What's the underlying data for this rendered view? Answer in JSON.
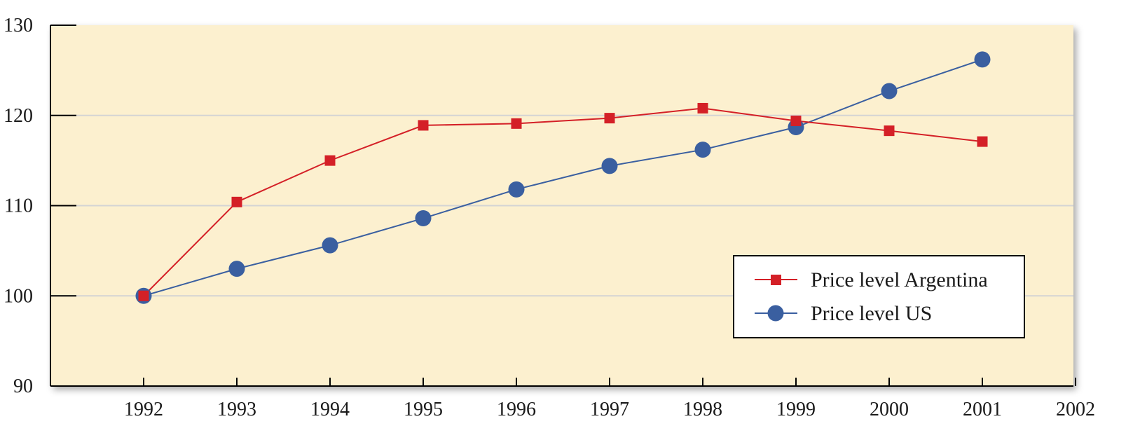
{
  "chart_data": {
    "type": "line",
    "title": "",
    "xlabel": "",
    "ylabel": "",
    "x": [
      1992,
      1993,
      1994,
      1995,
      1996,
      1997,
      1998,
      1999,
      2000,
      2001
    ],
    "x_ticks": [
      1992,
      1993,
      1994,
      1995,
      1996,
      1997,
      1998,
      1999,
      2000,
      2001,
      2002
    ],
    "xlim": [
      1991,
      2002
    ],
    "ylim": [
      90,
      130
    ],
    "y_ticks": [
      90,
      100,
      110,
      120,
      130
    ],
    "grid": "horizontal",
    "legend_position": "lower-right",
    "series": [
      {
        "name": "Price level Argentina",
        "marker": "square",
        "color": "#d42027",
        "values": [
          100,
          110.4,
          115,
          118.9,
          119.1,
          119.7,
          120.8,
          119.4,
          118.3,
          117.1
        ]
      },
      {
        "name": "Price level US",
        "marker": "circle",
        "color": "#3a5fa0",
        "values": [
          100,
          103,
          105.6,
          108.6,
          111.8,
          114.4,
          116.2,
          118.7,
          122.7,
          126.2
        ]
      }
    ]
  },
  "colors": {
    "plot_background": "#fcf0cf",
    "gridline": "#d4d4d4",
    "axis": "#000000"
  }
}
